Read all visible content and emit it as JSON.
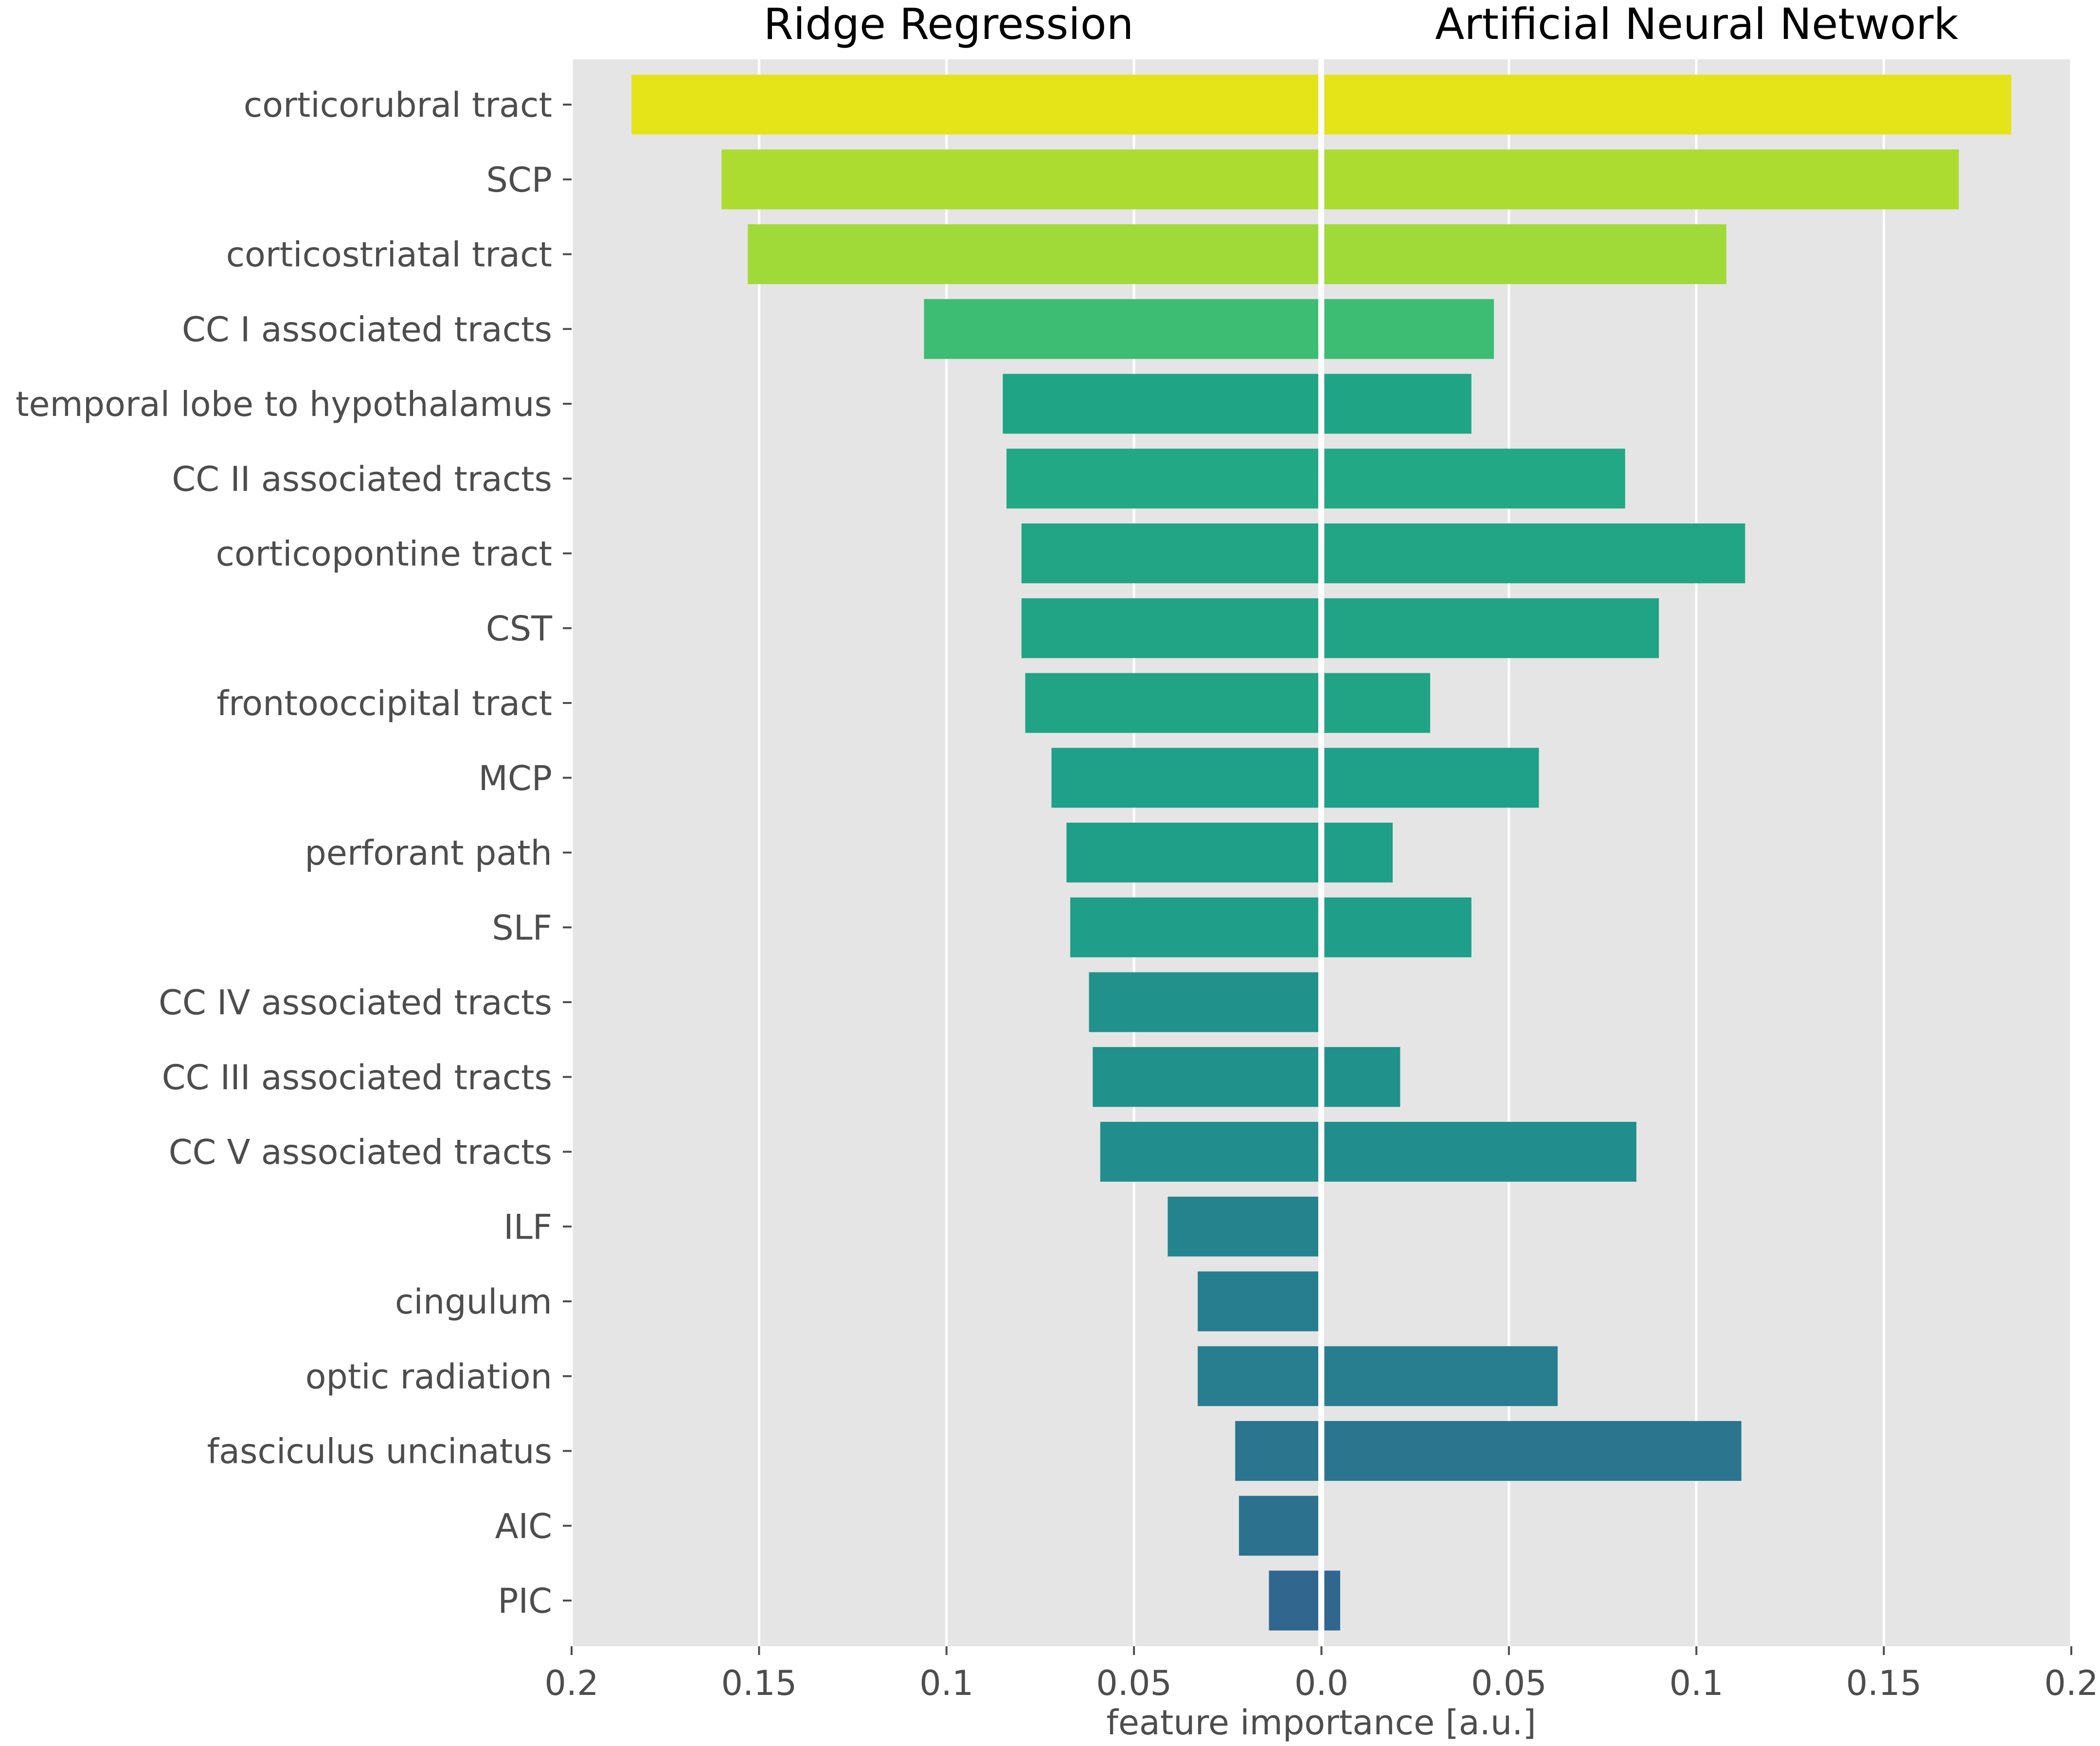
{
  "chart_data": {
    "type": "bar",
    "orientation": "horizontal",
    "layout": "back-to-back",
    "xlabel": "feature importance [a.u.]",
    "xlim": [
      -0.2,
      0.2
    ],
    "grid": true,
    "xticks": [
      {
        "value": -0.2,
        "label": "0.2"
      },
      {
        "value": -0.15,
        "label": "0.15"
      },
      {
        "value": -0.1,
        "label": "0.1"
      },
      {
        "value": -0.05,
        "label": "0.05"
      },
      {
        "value": 0.0,
        "label": "0.0"
      },
      {
        "value": 0.05,
        "label": "0.05"
      },
      {
        "value": 0.1,
        "label": "0.1"
      },
      {
        "value": 0.15,
        "label": "0.15"
      },
      {
        "value": 0.2,
        "label": "0.2"
      }
    ],
    "categories": [
      "corticorubral tract",
      "SCP",
      "corticostriatal tract",
      "CC I associated tracts",
      "temporal lobe to hypothalamus",
      "CC II associated tracts",
      "corticopontine tract",
      "CST",
      "frontooccipital tract",
      "MCP",
      "perforant path",
      "SLF",
      "CC IV associated tracts",
      "CC III associated tracts",
      "CC V associated tracts",
      "ILF",
      "cingulum",
      "optic radiation",
      "fasciculus uncinatus",
      "AIC",
      "PIC"
    ],
    "colors": [
      "#e5e419",
      "#addc30",
      "#a0da39",
      "#3dbc74",
      "#20a486",
      "#22a884",
      "#21a585",
      "#21a386",
      "#21a386",
      "#1fa088",
      "#1f9f88",
      "#1f9e89",
      "#21918c",
      "#21918c",
      "#218e8d",
      "#25838e",
      "#277e8e",
      "#287d8e",
      "#2b758e",
      "#2c728e",
      "#31668e"
    ],
    "series": [
      {
        "name": "Ridge Regression",
        "side": "left",
        "values": [
          0.184,
          0.16,
          0.153,
          0.106,
          0.085,
          0.084,
          0.08,
          0.08,
          0.079,
          0.072,
          0.068,
          0.067,
          0.062,
          0.061,
          0.059,
          0.041,
          0.033,
          0.033,
          0.023,
          0.022,
          0.014
        ]
      },
      {
        "name": "Artificial Neural Network",
        "side": "right",
        "values": [
          0.184,
          0.17,
          0.108,
          0.046,
          0.04,
          0.081,
          0.113,
          0.09,
          0.029,
          0.058,
          0.019,
          0.04,
          0.0,
          0.021,
          0.084,
          0.0,
          0.0,
          0.063,
          0.112,
          0.0,
          0.005
        ]
      }
    ]
  },
  "colors": {
    "background": "#e5e5e5",
    "gridline": "#ffffff",
    "text": "#4d4d4d"
  }
}
